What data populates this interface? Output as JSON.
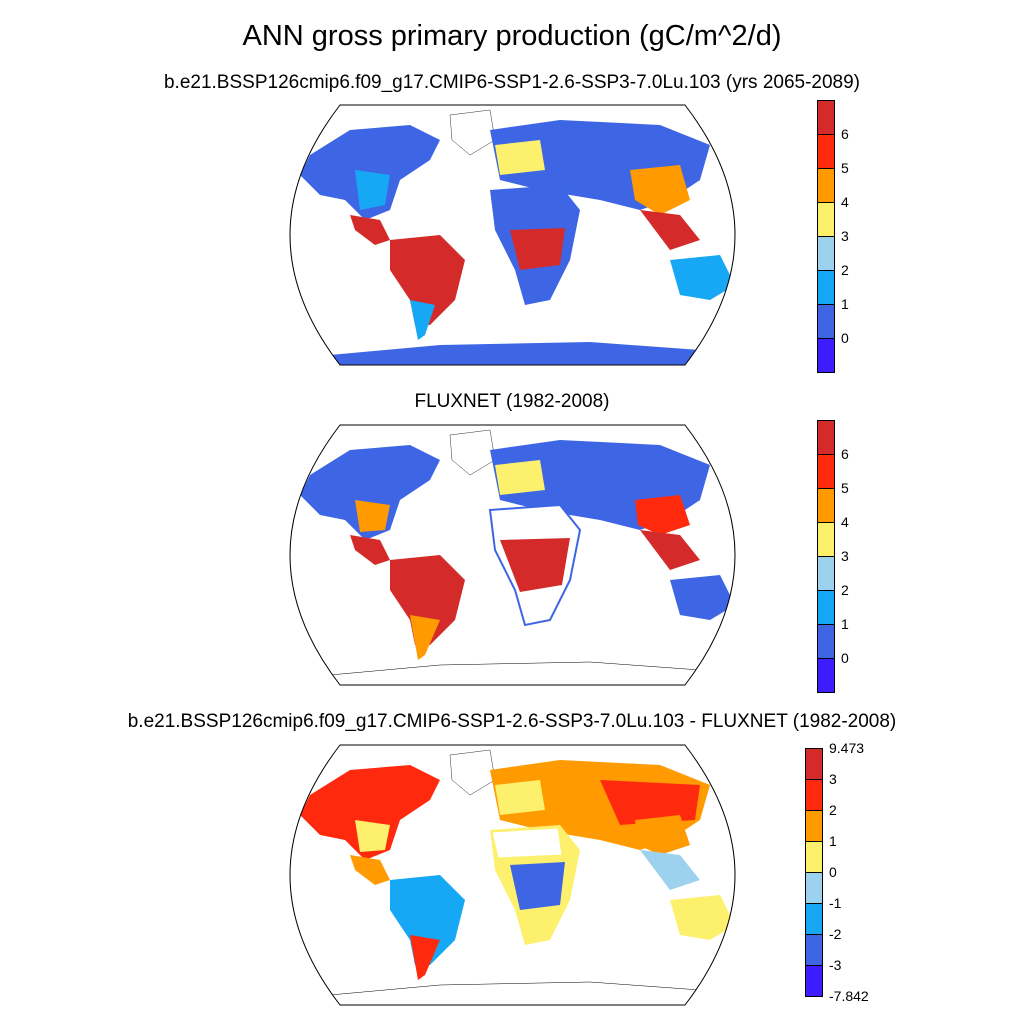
{
  "title": "ANN gross primary production (gC/m^2/d)",
  "colors": {
    "c0": "#3d1dff",
    "c1": "#3e66e4",
    "c2": "#16a7f5",
    "c3": "#9dd2ee",
    "c4": "#fdf06c",
    "c5": "#ff9a00",
    "c6": "#ff2a0e",
    "c7": "#d42a2a",
    "ocean": "#ffffff",
    "missing": "#ffffff"
  },
  "panels": [
    {
      "subtitle": "b.e21.BSSP126cmip6.f09_g17.CMIP6-SSP1-2.6-SSP3-7.0Lu.103 (yrs 2065-2089)",
      "colorbar": {
        "labels": [
          "6",
          "5",
          "4",
          "3",
          "2",
          "1",
          "0"
        ]
      }
    },
    {
      "subtitle": "FLUXNET (1982-2008)",
      "colorbar": {
        "labels": [
          "6",
          "5",
          "4",
          "3",
          "2",
          "1",
          "0"
        ]
      }
    },
    {
      "subtitle": "b.e21.BSSP126cmip6.f09_g17.CMIP6-SSP1-2.6-SSP3-7.0Lu.103 - FLUXNET (1982-2008)",
      "colorbar": {
        "labels": [
          "9.473",
          "3",
          "2",
          "1",
          "0",
          "-1",
          "-2",
          "-3",
          "-7.842"
        ]
      }
    }
  ]
}
